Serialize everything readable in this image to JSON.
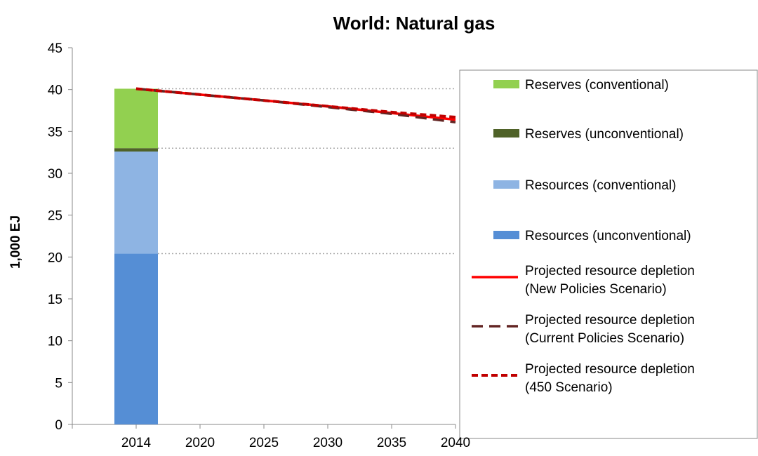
{
  "chart_data": {
    "type": "stacked-bar-line",
    "title": "World: Natural gas",
    "y_label": "1,000 EJ",
    "categories": [
      "2014",
      "2020",
      "2025",
      "2030",
      "2035",
      "2040"
    ],
    "ylim": [
      0,
      45
    ],
    "yticks": [
      0,
      5,
      10,
      15,
      20,
      25,
      30,
      35,
      40,
      45
    ],
    "stack": [
      {
        "name": "Resources (unconventional)",
        "color": "#558ed5",
        "value": 20.4
      },
      {
        "name": "Resources (conventional)",
        "color": "#8eb4e3",
        "value": 12.2
      },
      {
        "name": "Reserves (unconventional)",
        "color": "#4f6228",
        "value": 0.4
      },
      {
        "name": "Reserves (conventional)",
        "color": "#92d050",
        "value": 7.1
      }
    ],
    "lines": [
      {
        "name": [
          "Projected resource depletion",
          "(New Policies Scenario)"
        ],
        "color": "#ff0000",
        "dash": "none",
        "values": [
          40.1,
          39.4,
          38.7,
          38.0,
          37.2,
          36.4
        ]
      },
      {
        "name": [
          "Projected resource depletion",
          "(Current Policies Scenario)"
        ],
        "color": "#632523",
        "dash": "16 9",
        "values": [
          40.1,
          39.4,
          38.7,
          37.9,
          37.1,
          36.1
        ]
      },
      {
        "name": [
          "Projected resource depletion",
          "(450 Scenario)"
        ],
        "color": "#c00000",
        "dash": "9 5",
        "values": [
          40.1,
          39.4,
          38.7,
          38.0,
          37.3,
          36.7
        ]
      }
    ]
  }
}
